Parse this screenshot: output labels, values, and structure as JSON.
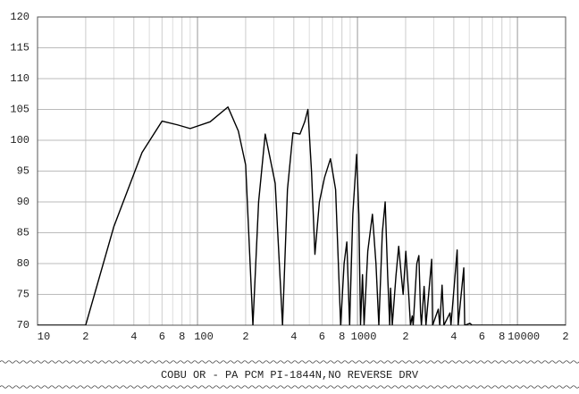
{
  "chart_data": {
    "type": "line",
    "x_scale": "log",
    "grid": true,
    "xlim": [
      10,
      20000
    ],
    "ylim": [
      70,
      120
    ],
    "xticks": [
      10,
      {
        "value": 20,
        "label": "2"
      },
      {
        "value": 40,
        "label": "4"
      },
      {
        "value": 60,
        "label": "6"
      },
      {
        "value": 80,
        "label": "8"
      },
      100,
      {
        "value": 200,
        "label": "2"
      },
      {
        "value": 400,
        "label": "4"
      },
      {
        "value": 600,
        "label": "6"
      },
      {
        "value": 800,
        "label": "8"
      },
      1000,
      {
        "value": 2000,
        "label": "2"
      },
      {
        "value": 4000,
        "label": "4"
      },
      {
        "value": 6000,
        "label": "6"
      },
      {
        "value": 8000,
        "label": "8"
      },
      10000,
      {
        "value": 20000,
        "label": "2"
      }
    ],
    "yticks": [
      70,
      75,
      80,
      85,
      90,
      95,
      100,
      105,
      110,
      115,
      120
    ],
    "caption": "COBU OR - PA PCM PI-1844N,NO REVERSE DRV",
    "x": [
      10,
      20,
      30,
      45,
      60,
      75,
      90,
      120,
      155,
      180,
      200,
      222,
      241,
      265,
      306,
      340,
      365,
      395,
      437,
      468,
      490,
      516,
      542,
      578,
      623,
      678,
      730,
      785,
      825,
      858,
      893,
      935,
      988,
      1020,
      1045,
      1075,
      1100,
      1160,
      1240,
      1305,
      1360,
      1430,
      1490,
      1545,
      1590,
      1610,
      1650,
      1740,
      1810,
      1880,
      1930,
      2005,
      2090,
      2145,
      2200,
      2230,
      2350,
      2420,
      2480,
      2510,
      2610,
      2680,
      2910,
      2950,
      3200,
      3270,
      3380,
      3470,
      3790,
      3840,
      4200,
      4260,
      4620,
      4680,
      5050,
      5200,
      20000
    ],
    "series": [
      {
        "color": "#000000",
        "values": [
          70,
          70,
          86,
          98,
          103.1,
          102.5,
          101.9,
          103,
          105.4,
          101.5,
          96,
          70,
          90,
          101,
          93,
          70,
          92,
          101.2,
          101,
          103,
          105,
          95,
          81.5,
          90,
          94,
          97,
          92,
          70,
          80,
          83.5,
          70,
          88,
          97.7,
          88,
          70,
          78.2,
          70,
          82,
          88,
          80,
          70,
          85,
          90,
          78,
          70,
          76,
          70,
          78,
          82.8,
          78,
          75,
          82,
          75,
          70,
          71.5,
          70,
          80,
          81.3,
          72,
          70,
          76.3,
          70,
          80.7,
          70,
          72.6,
          70,
          76.5,
          70,
          72,
          70,
          82.2,
          70,
          79.3,
          70,
          70.3,
          70,
          70
        ]
      }
    ]
  }
}
